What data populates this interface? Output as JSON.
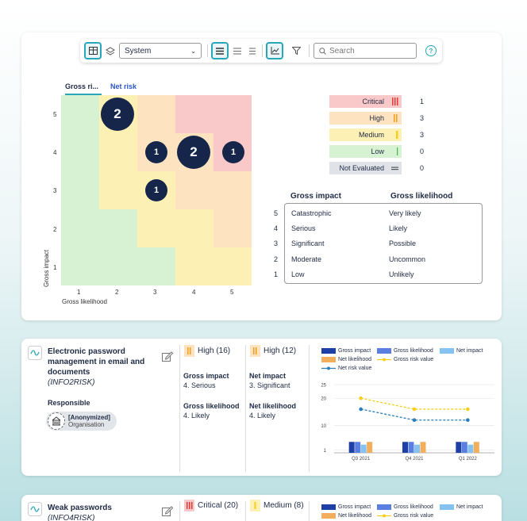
{
  "toolbar": {
    "select_value": "System",
    "search_placeholder": "Search",
    "help_label": "?"
  },
  "matrix": {
    "tabs": [
      {
        "label": "Gross ri..."
      },
      {
        "label": "Net risk"
      }
    ],
    "y_axis_label": "Gross impact",
    "x_axis_label": "Gross likelihood",
    "x_ticks": [
      "1",
      "2",
      "3",
      "4",
      "5"
    ],
    "y_ticks": [
      "5",
      "4",
      "3",
      "2",
      "1"
    ],
    "bubbles": [
      {
        "likelihood": 2,
        "impact": 5,
        "count": "2"
      },
      {
        "likelihood": 3,
        "impact": 4,
        "count": "1"
      },
      {
        "likelihood": 4,
        "impact": 4,
        "count": "2"
      },
      {
        "likelihood": 5,
        "impact": 4,
        "count": "1"
      },
      {
        "likelihood": 3,
        "impact": 3,
        "count": "1"
      }
    ]
  },
  "legend": [
    {
      "label": "Critical",
      "count": "1",
      "bg": "#f9c9c9",
      "bar": "#e53935"
    },
    {
      "label": "High",
      "count": "3",
      "bg": "#fde3bf",
      "bar": "#f59e1b"
    },
    {
      "label": "Medium",
      "count": "3",
      "bg": "#fcf0b5",
      "bar": "#f5cf1b"
    },
    {
      "label": "Low",
      "count": "0",
      "bg": "#d6f2d3",
      "bar": "#4caf50"
    },
    {
      "label": "Not Evaluated",
      "count": "0",
      "bg": "#dfe3e8",
      "bar": "#8a94a6"
    }
  ],
  "impact_table": {
    "head_impact": "Gross impact",
    "head_likelihood": "Gross likelihood",
    "rows": [
      {
        "n": "5",
        "impact": "Catastrophic",
        "likelihood": "Very likely"
      },
      {
        "n": "4",
        "impact": "Serious",
        "likelihood": "Likely"
      },
      {
        "n": "3",
        "impact": "Significant",
        "likelihood": "Possible"
      },
      {
        "n": "2",
        "impact": "Moderate",
        "likelihood": "Uncommon"
      },
      {
        "n": "1",
        "impact": "Low",
        "likelihood": "Unlikely"
      }
    ]
  },
  "risk1": {
    "title_line1": "Electronic password",
    "title_line2": "management in email and",
    "title_line3": "documents",
    "code": "(INFO2RISK)",
    "responsible_label": "Responsible",
    "owner_name": "[Anonymized]",
    "owner_type": "Organisation",
    "gross_level": "High (16)",
    "net_level": "High (12)",
    "gross_impact_label": "Gross impact",
    "gross_impact_value": "4. Serious",
    "net_impact_label": "Net impact",
    "net_impact_value": "3. Significant",
    "gross_likelihood_label": "Gross likelihood",
    "gross_likelihood_value": "4. Likely",
    "net_likelihood_label": "Net likelihood",
    "net_likelihood_value": "4. Likely"
  },
  "risk2": {
    "title": "Weak passwords",
    "code": "(INFO4RISK)",
    "gross_level": "Critical (20)",
    "net_level": "Medium (8)"
  },
  "chart_legend": {
    "gross_impact": "Gross impact",
    "gross_likelihood": "Gross likelihood",
    "net_impact": "Net impact",
    "net_likelihood": "Net likelihood",
    "gross_risk_value": "Gross risk value",
    "net_risk_value": "Net risk value"
  },
  "chart_data": {
    "type": "bar",
    "categories": [
      "Q3 2021",
      "Q4 2021",
      "Q1 2022"
    ],
    "y_ticks": [
      "1",
      "10",
      "20",
      "25"
    ],
    "series": [
      {
        "name": "Gross impact",
        "values": [
          4,
          4,
          4
        ],
        "color": "#1d3fa6"
      },
      {
        "name": "Gross likelihood",
        "values": [
          4,
          4,
          4
        ],
        "color": "#5b7fe0"
      },
      {
        "name": "Net impact",
        "values": [
          3,
          3,
          3
        ],
        "color": "#86c2ef"
      },
      {
        "name": "Net likelihood",
        "values": [
          4,
          4,
          4
        ],
        "color": "#f2ad5d"
      },
      {
        "name": "Gross risk value",
        "values": [
          20,
          16,
          16
        ],
        "color": "#f5cf1b",
        "kind": "line"
      },
      {
        "name": "Net risk value",
        "values": [
          16,
          12,
          12
        ],
        "color": "#2a7fb8",
        "kind": "line"
      }
    ]
  }
}
